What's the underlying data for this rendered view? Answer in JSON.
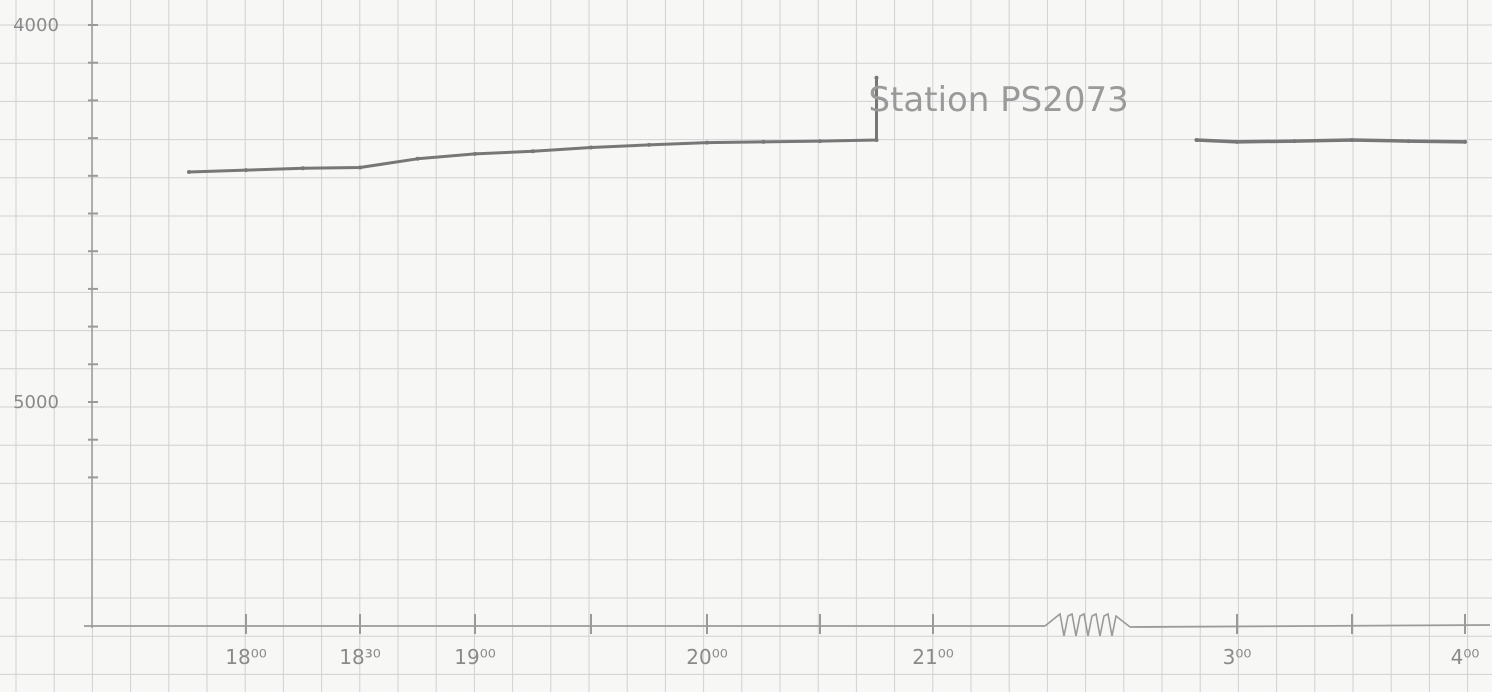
{
  "chart_data": {
    "type": "line",
    "title": "",
    "xlabel": "",
    "ylabel": "",
    "grid": true,
    "y_axis": {
      "range": [
        4000,
        5300
      ],
      "inverted": true,
      "ticks": [
        {
          "value": 4000,
          "label": "4000"
        },
        {
          "value": 4100,
          "label": ""
        },
        {
          "value": 4200,
          "label": ""
        },
        {
          "value": 4300,
          "label": ""
        },
        {
          "value": 4400,
          "label": ""
        },
        {
          "value": 4500,
          "label": ""
        },
        {
          "value": 4600,
          "label": ""
        },
        {
          "value": 4700,
          "label": ""
        },
        {
          "value": 4800,
          "label": ""
        },
        {
          "value": 4900,
          "label": ""
        },
        {
          "value": 5000,
          "label": "5000"
        },
        {
          "value": 5100,
          "label": ""
        },
        {
          "value": 5200,
          "label": ""
        }
      ]
    },
    "x_axis": {
      "ticks": [
        {
          "pos": 0,
          "label": "18⁰⁰"
        },
        {
          "pos": 1,
          "label": "18³⁰"
        },
        {
          "pos": 2,
          "label": "19⁰⁰"
        },
        {
          "pos": 3,
          "label": ""
        },
        {
          "pos": 4,
          "label": "20⁰⁰"
        },
        {
          "pos": 5,
          "label": ""
        },
        {
          "pos": 6,
          "label": "21⁰⁰"
        },
        {
          "pos": 9,
          "label": "3⁰⁰"
        },
        {
          "pos": 10,
          "label": ""
        },
        {
          "pos": 11,
          "label": "4⁰⁰"
        }
      ],
      "break_between": [
        6,
        9
      ]
    },
    "series": [
      {
        "name": "",
        "points": [
          [
            -0.5,
            4390
          ],
          [
            0,
            4385
          ],
          [
            0.5,
            4380
          ],
          [
            1,
            4378
          ],
          [
            1.5,
            4355
          ],
          [
            2,
            4342
          ],
          [
            2.5,
            4335
          ],
          [
            3,
            4325
          ],
          [
            3.5,
            4318
          ],
          [
            4,
            4312
          ],
          [
            4.5,
            4310
          ],
          [
            5,
            4308
          ],
          [
            5.5,
            4305
          ],
          [
            5.5,
            4140
          ]
        ]
      },
      {
        "name": "",
        "points": [
          [
            8.6,
            4305
          ],
          [
            9,
            4310
          ],
          [
            9.5,
            4308
          ],
          [
            10,
            4305
          ],
          [
            10.5,
            4308
          ],
          [
            11,
            4310
          ]
        ]
      }
    ],
    "annotations": [
      {
        "text": "Station PS2073",
        "x": 5.5,
        "y": 4125
      }
    ],
    "colors": {
      "line": "#777777",
      "grid": "#cfd2d3",
      "axis": "#9a9a9a",
      "text": "#8a8a8a"
    }
  }
}
